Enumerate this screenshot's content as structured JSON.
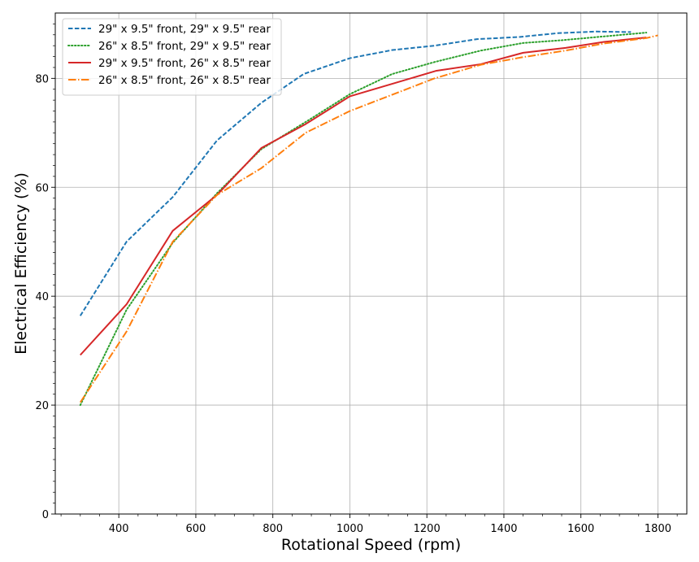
{
  "chart_data": {
    "type": "line",
    "title": "",
    "xlabel": "Rotational Speed (rpm)",
    "ylabel": "Electrical Efficiency (%)",
    "xlim": [
      235,
      1875
    ],
    "ylim": [
      0,
      92
    ],
    "x_ticks_major": [
      400,
      600,
      800,
      1000,
      1200,
      1400,
      1600,
      1800
    ],
    "x_ticks_minor": [
      250,
      300,
      350,
      450,
      500,
      550,
      650,
      700,
      750,
      850,
      900,
      950,
      1050,
      1100,
      1150,
      1250,
      1300,
      1350,
      1450,
      1500,
      1550,
      1650,
      1700,
      1750,
      1850
    ],
    "y_ticks_major": [
      0,
      20,
      40,
      60,
      80
    ],
    "y_ticks_minor": [
      2,
      4,
      6,
      8,
      10,
      12,
      14,
      16,
      18,
      22,
      24,
      26,
      28,
      30,
      32,
      34,
      36,
      38,
      42,
      44,
      46,
      48,
      50,
      52,
      54,
      56,
      58,
      62,
      64,
      66,
      68,
      70,
      72,
      74,
      76,
      78,
      82,
      84,
      86,
      88,
      90
    ],
    "grid": true,
    "legend_position": "top-left",
    "series": [
      {
        "name": "29\" x 9.5\" front, 29\" x 9.5\" rear",
        "color": "#1f77b4",
        "dash": "dashed",
        "points": [
          [
            300,
            36.4
          ],
          [
            420,
            50
          ],
          [
            540,
            58.2
          ],
          [
            655,
            68.6
          ],
          [
            770,
            75.5
          ],
          [
            880,
            80.8
          ],
          [
            1000,
            83.7
          ],
          [
            1110,
            85.2
          ],
          [
            1220,
            86
          ],
          [
            1330,
            87.2
          ],
          [
            1440,
            87.6
          ],
          [
            1540,
            88.3
          ],
          [
            1640,
            88.6
          ],
          [
            1730,
            88.5
          ]
        ]
      },
      {
        "name": "26\" x 8.5\" front, 29\" x 9.5\" rear",
        "color": "#2ca02c",
        "dash": "dotted",
        "points": [
          [
            300,
            20
          ],
          [
            420,
            37.5
          ],
          [
            540,
            49.8
          ],
          [
            655,
            58.9
          ],
          [
            770,
            67
          ],
          [
            890,
            72.2
          ],
          [
            1000,
            77.1
          ],
          [
            1110,
            80.8
          ],
          [
            1220,
            83
          ],
          [
            1340,
            85.1
          ],
          [
            1450,
            86.5
          ],
          [
            1550,
            87
          ],
          [
            1660,
            87.7
          ],
          [
            1770,
            88.4
          ]
        ]
      },
      {
        "name": "29\" x 9.5\" front, 26\" x 8.5\" rear",
        "color": "#d62728",
        "dash": "solid",
        "points": [
          [
            300,
            29.2
          ],
          [
            420,
            38.5
          ],
          [
            540,
            52
          ],
          [
            655,
            58.6
          ],
          [
            770,
            67.2
          ],
          [
            885,
            71.6
          ],
          [
            1000,
            76.7
          ],
          [
            1110,
            79
          ],
          [
            1225,
            81.4
          ],
          [
            1340,
            82.6
          ],
          [
            1450,
            84.7
          ],
          [
            1560,
            85.6
          ],
          [
            1660,
            86.7
          ],
          [
            1770,
            87.5
          ]
        ]
      },
      {
        "name": "26\" x 8.5\" front, 26\" x 8.5\" rear",
        "color": "#ff7f0e",
        "dash": "dashdot",
        "points": [
          [
            300,
            20.5
          ],
          [
            420,
            33.5
          ],
          [
            540,
            50
          ],
          [
            655,
            58.6
          ],
          [
            770,
            63.5
          ],
          [
            885,
            70
          ],
          [
            1000,
            74
          ],
          [
            1110,
            77
          ],
          [
            1220,
            80
          ],
          [
            1340,
            82.5
          ],
          [
            1450,
            83.9
          ],
          [
            1560,
            85.1
          ],
          [
            1660,
            86.4
          ],
          [
            1770,
            87.4
          ],
          [
            1800,
            87.9
          ]
        ]
      }
    ]
  }
}
